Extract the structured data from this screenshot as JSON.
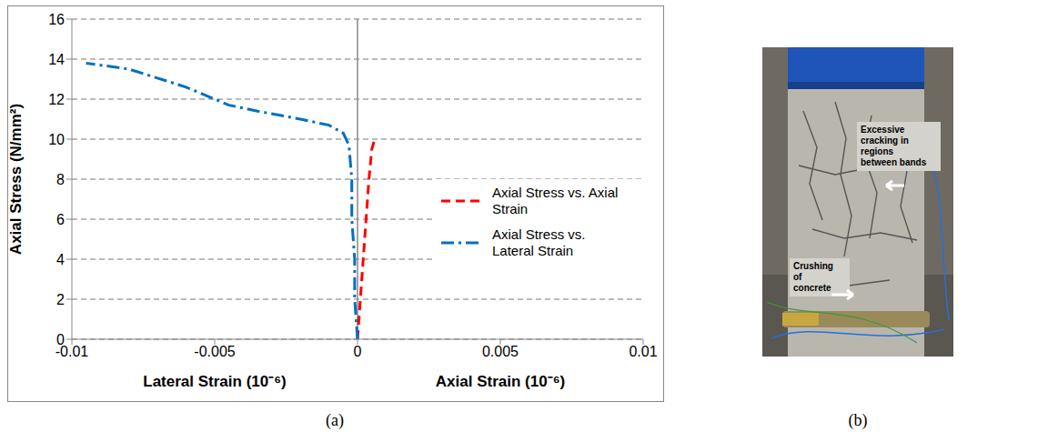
{
  "chart_data": {
    "type": "line",
    "x_labels": [
      "Lateral Strain (10⁻⁶)",
      "Axial Strain (10⁻⁶)"
    ],
    "y_label": "Axial Stress (N/mm²)",
    "xlim": [
      -0.01,
      0.01
    ],
    "xticks": [
      -0.01,
      -0.005,
      0,
      0.005,
      0.01
    ],
    "ylim": [
      0,
      16
    ],
    "yticks": [
      0,
      2,
      4,
      6,
      8,
      10,
      12,
      14,
      16
    ],
    "grid": true,
    "legend": "right",
    "series": [
      {
        "name": "Axial Stress vs. Axial Strain",
        "color": "#ff0000",
        "line_style": "dashed",
        "x": [
          0,
          0.0001,
          0.0002,
          0.0003,
          0.0004,
          0.0005,
          0.0006
        ],
        "values": [
          0,
          2,
          4,
          6,
          8,
          9.5,
          10
        ]
      },
      {
        "name": "Axial Stress vs. Lateral Strain",
        "color": "#0070c0",
        "line_style": "dashdot",
        "x": [
          0,
          -0.0001,
          -0.0001,
          -0.0002,
          -0.0002,
          -0.0003,
          -0.0005,
          -0.001,
          -0.002,
          -0.0035,
          -0.0045,
          -0.006,
          -0.008,
          -0.0095
        ],
        "values": [
          0,
          2,
          4,
          6,
          8,
          9.7,
          10.3,
          10.7,
          11,
          11.4,
          11.7,
          12.6,
          13.5,
          13.8
        ]
      }
    ]
  },
  "photo": {
    "annotations": [
      "Excessive cracking in regions between bands",
      "Crushing of concrete"
    ]
  },
  "panel_labels": [
    "(a)",
    "(b)"
  ]
}
